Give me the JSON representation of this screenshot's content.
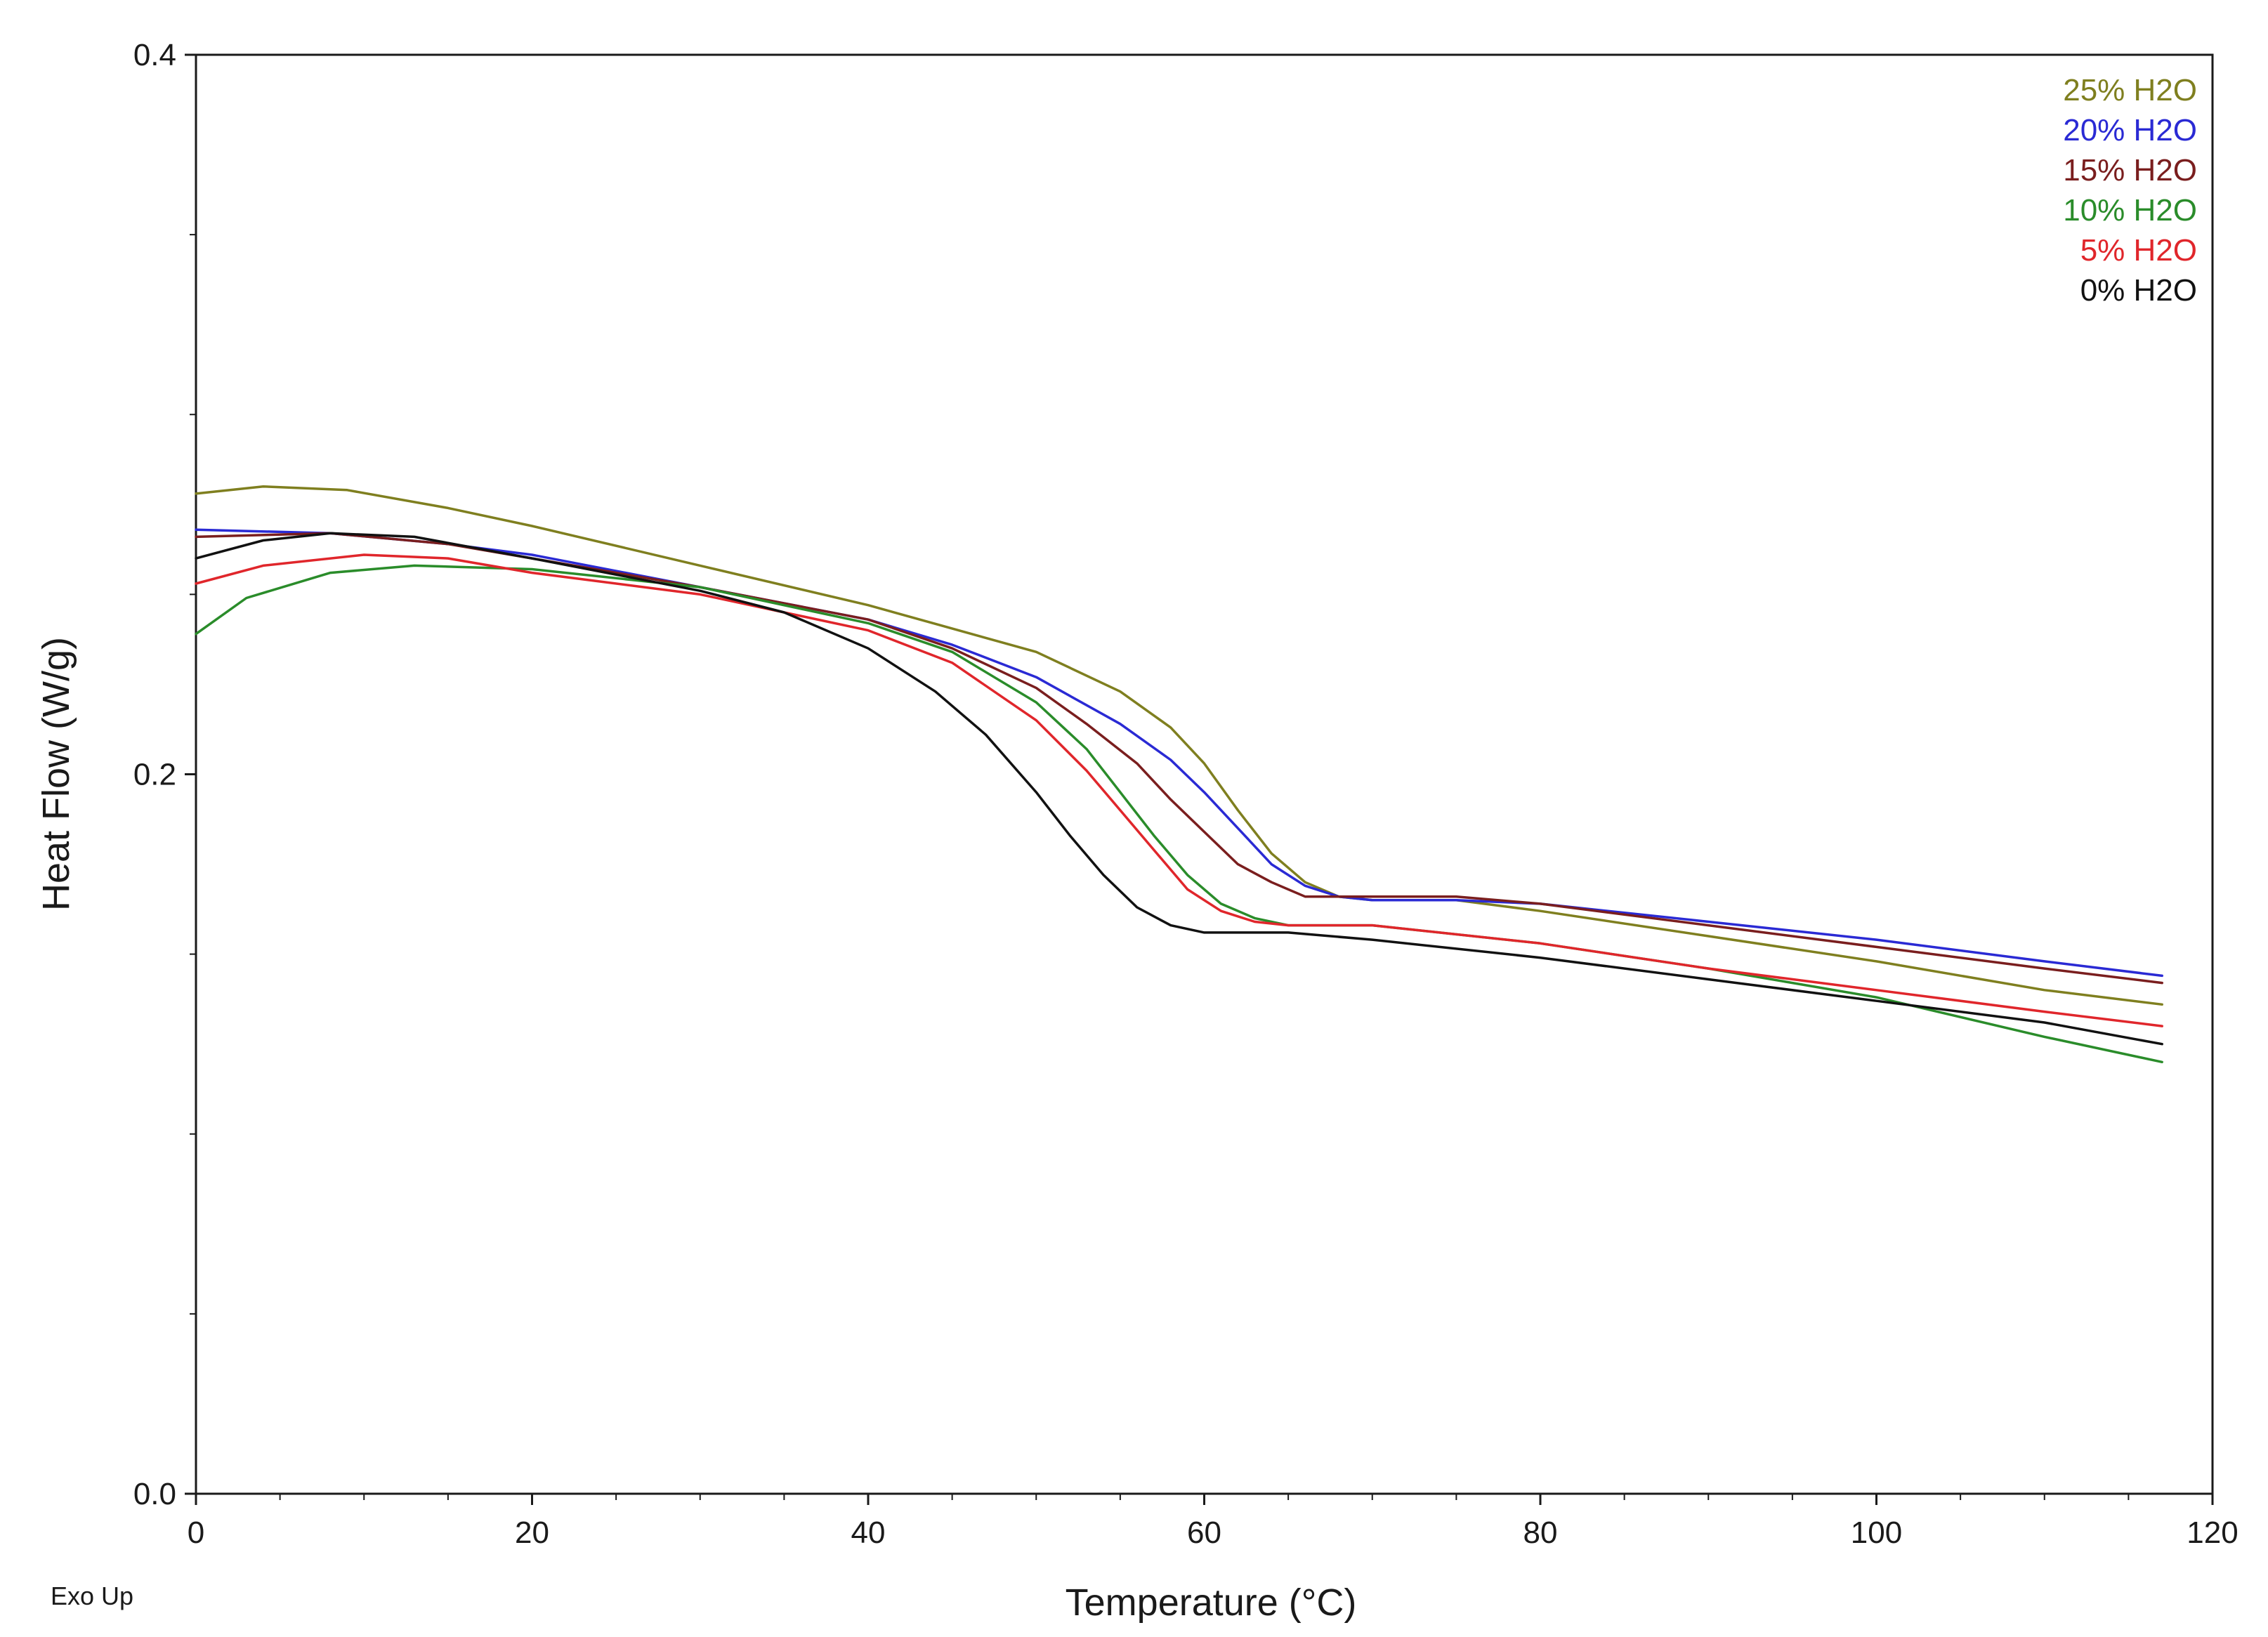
{
  "chart_data": {
    "type": "line",
    "title": "",
    "xlabel": "Temperature (°C)",
    "ylabel": "Heat Flow (W/g)",
    "xlim": [
      0,
      120
    ],
    "ylim": [
      0.0,
      0.4
    ],
    "xticks": [
      0,
      20,
      40,
      60,
      80,
      100,
      120
    ],
    "yticks": [
      0.0,
      0.2,
      0.4
    ],
    "xtick_labels": [
      "0",
      "20",
      "40",
      "60",
      "80",
      "100",
      "120"
    ],
    "ytick_labels": [
      "0.0",
      "0.2",
      "0.4"
    ],
    "corner_note": "Exo Up",
    "legend_position": "top-right",
    "grid": false,
    "series": [
      {
        "name": "25% H2O",
        "color": "#7f7f1f",
        "x": [
          0,
          4,
          9,
          15,
          20,
          30,
          40,
          50,
          55,
          58,
          60,
          62,
          64,
          66,
          68,
          70,
          75,
          80,
          90,
          100,
          110,
          117
        ],
        "y": [
          0.278,
          0.28,
          0.279,
          0.274,
          0.269,
          0.258,
          0.247,
          0.234,
          0.223,
          0.213,
          0.203,
          0.19,
          0.178,
          0.17,
          0.166,
          0.165,
          0.165,
          0.162,
          0.155,
          0.148,
          0.14,
          0.136
        ]
      },
      {
        "name": "20% H2O",
        "color": "#2a2ad4",
        "x": [
          0,
          8,
          15,
          20,
          30,
          40,
          45,
          50,
          55,
          58,
          60,
          62,
          64,
          66,
          68,
          70,
          75,
          80,
          90,
          100,
          110,
          117
        ],
        "y": [
          0.268,
          0.267,
          0.264,
          0.261,
          0.252,
          0.243,
          0.236,
          0.227,
          0.214,
          0.204,
          0.195,
          0.185,
          0.175,
          0.169,
          0.166,
          0.165,
          0.165,
          0.164,
          0.159,
          0.154,
          0.148,
          0.144
        ]
      },
      {
        "name": "15% H2O",
        "color": "#7a1e1e",
        "x": [
          0,
          8,
          15,
          20,
          30,
          40,
          45,
          50,
          53,
          56,
          58,
          60,
          62,
          64,
          66,
          68,
          70,
          75,
          80,
          90,
          100,
          110,
          117
        ],
        "y": [
          0.266,
          0.267,
          0.264,
          0.26,
          0.252,
          0.243,
          0.235,
          0.224,
          0.214,
          0.203,
          0.193,
          0.184,
          0.175,
          0.17,
          0.166,
          0.166,
          0.166,
          0.166,
          0.164,
          0.158,
          0.152,
          0.146,
          0.142
        ]
      },
      {
        "name": "10% H2O",
        "color": "#2a8c2a",
        "x": [
          0,
          3,
          8,
          13,
          20,
          30,
          40,
          45,
          50,
          53,
          55,
          57,
          59,
          61,
          63,
          65,
          70,
          80,
          90,
          100,
          110,
          117
        ],
        "y": [
          0.239,
          0.249,
          0.256,
          0.258,
          0.257,
          0.252,
          0.242,
          0.234,
          0.22,
          0.207,
          0.195,
          0.183,
          0.172,
          0.164,
          0.16,
          0.158,
          0.158,
          0.153,
          0.146,
          0.138,
          0.127,
          0.12
        ]
      },
      {
        "name": "5% H2O",
        "color": "#e0262b",
        "x": [
          0,
          4,
          10,
          15,
          20,
          30,
          40,
          45,
          50,
          53,
          55,
          57,
          59,
          61,
          63,
          65,
          70,
          80,
          90,
          100,
          110,
          117
        ],
        "y": [
          0.253,
          0.258,
          0.261,
          0.26,
          0.256,
          0.25,
          0.24,
          0.231,
          0.215,
          0.201,
          0.19,
          0.179,
          0.168,
          0.162,
          0.159,
          0.158,
          0.158,
          0.153,
          0.146,
          0.14,
          0.134,
          0.13
        ]
      },
      {
        "name": "0% H2O",
        "color": "#111111",
        "x": [
          0,
          4,
          8,
          13,
          20,
          30,
          35,
          40,
          44,
          47,
          50,
          52,
          54,
          56,
          58,
          60,
          62,
          65,
          70,
          80,
          90,
          100,
          110,
          117
        ],
        "y": [
          0.26,
          0.265,
          0.267,
          0.266,
          0.26,
          0.251,
          0.245,
          0.235,
          0.223,
          0.211,
          0.195,
          0.183,
          0.172,
          0.163,
          0.158,
          0.156,
          0.156,
          0.156,
          0.154,
          0.149,
          0.143,
          0.137,
          0.131,
          0.125
        ]
      }
    ],
    "legend_order": [
      "25% H2O",
      "20% H2O",
      "15% H2O",
      "10% H2O",
      "5% H2O",
      "0% H2O"
    ]
  }
}
